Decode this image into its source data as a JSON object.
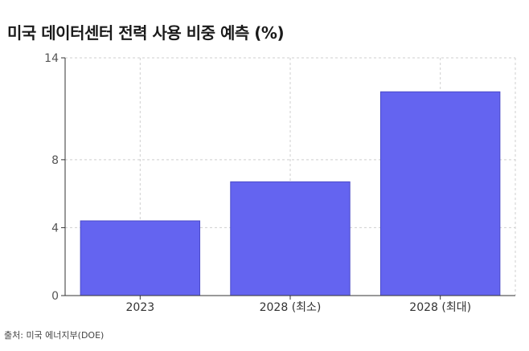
{
  "title": "미국 데이터센터 전력 사용 비중 예측 (%)",
  "source": "출처: 미국 에너지부(DOE)",
  "colors": {
    "bar": "#6464f0",
    "bar_stroke": "#4b4bc8",
    "grid": "#cfcfcf",
    "axis": "#333333"
  },
  "chart_data": {
    "type": "bar",
    "title": "미국 데이터센터 전력 사용 비중 예측 (%)",
    "categories": [
      "2023",
      "2028 (최소)",
      "2028 (최대)"
    ],
    "values": [
      4.4,
      6.7,
      12.0
    ],
    "y_ticks": [
      0,
      4,
      8,
      14
    ],
    "ylim": [
      0,
      14
    ],
    "xlabel": "",
    "ylabel": "",
    "grid": true,
    "legend": "none"
  }
}
